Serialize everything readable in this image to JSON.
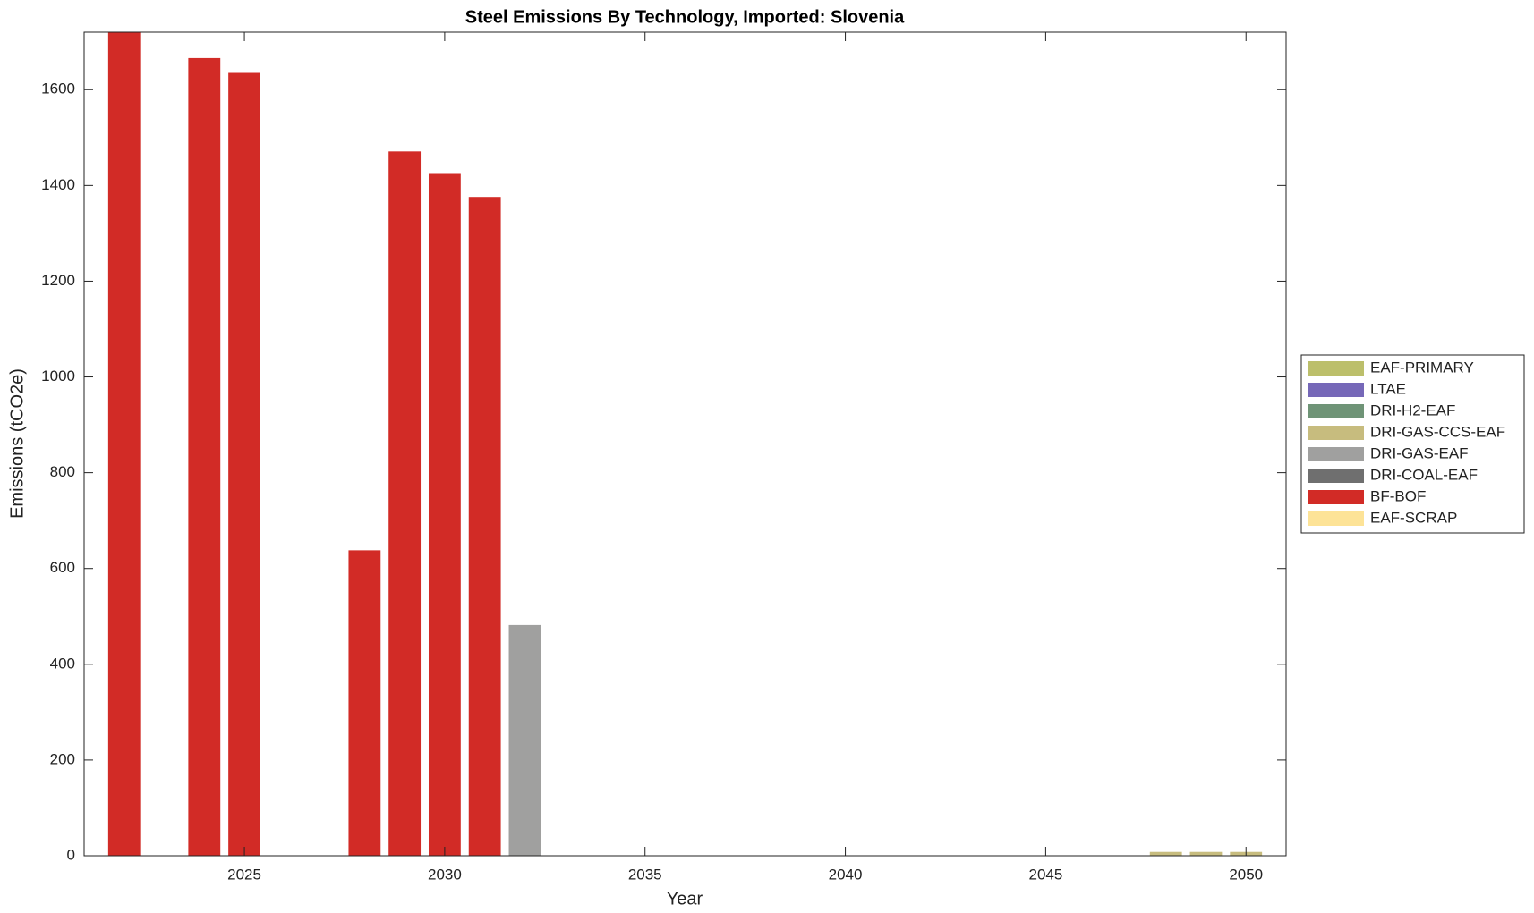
{
  "chart_data": {
    "type": "stacked_bar",
    "title": "Steel Emissions By Technology, Imported: Slovenia",
    "x_label": "Year",
    "y_label": "Emissions (tCO2e)",
    "x": [
      2022,
      2023,
      2024,
      2025,
      2026,
      2027,
      2028,
      2029,
      2030,
      2031,
      2032,
      2033,
      2034,
      2035,
      2036,
      2037,
      2038,
      2039,
      2040,
      2041,
      2042,
      2043,
      2044,
      2045,
      2046,
      2047,
      2048,
      2049,
      2050
    ],
    "series": [
      {
        "name": "EAF-PRIMARY",
        "color": "#bcbf6b",
        "values": [
          0,
          0,
          0,
          0,
          0,
          0,
          0,
          0,
          0,
          0,
          0,
          0,
          0,
          0,
          0,
          0,
          0,
          0,
          0,
          0,
          0,
          0,
          0,
          0,
          0,
          0,
          0,
          0,
          0
        ]
      },
      {
        "name": "LTAE",
        "color": "#7668b8",
        "values": [
          0,
          0,
          0,
          0,
          0,
          0,
          0,
          0,
          0,
          0,
          0,
          0,
          0,
          0,
          0,
          0,
          0,
          0,
          0,
          0,
          0,
          0,
          0,
          0,
          0,
          0,
          0,
          0,
          0
        ]
      },
      {
        "name": "DRI-H2-EAF",
        "color": "#6f9477",
        "values": [
          0,
          0,
          0,
          0,
          0,
          0,
          0,
          0,
          0,
          0,
          0,
          0,
          0,
          0,
          0,
          0,
          0,
          0,
          0,
          0,
          0,
          0,
          0,
          0,
          0,
          0,
          0,
          0,
          0
        ]
      },
      {
        "name": "DRI-GAS-CCS-EAF",
        "color": "#c7bc7e",
        "values": [
          0,
          0,
          0,
          0,
          0,
          0,
          0,
          0,
          0,
          0,
          0,
          0,
          0,
          0,
          0,
          0,
          0,
          0,
          0,
          0,
          0,
          0,
          0,
          0,
          0,
          0,
          8,
          8,
          8
        ]
      },
      {
        "name": "DRI-GAS-EAF",
        "color": "#a0a09f",
        "values": [
          0,
          0,
          0,
          0,
          0,
          0,
          0,
          0,
          0,
          0,
          482,
          0,
          0,
          0,
          0,
          0,
          0,
          0,
          0,
          0,
          0,
          0,
          0,
          0,
          0,
          0,
          0,
          0,
          0
        ]
      },
      {
        "name": "DRI-COAL-EAF",
        "color": "#6f6f6f",
        "values": [
          0,
          0,
          0,
          0,
          0,
          0,
          0,
          0,
          0,
          0,
          0,
          0,
          0,
          0,
          0,
          0,
          0,
          0,
          0,
          0,
          0,
          0,
          0,
          0,
          0,
          0,
          0,
          0,
          0
        ]
      },
      {
        "name": "BF-BOF",
        "color": "#d22b26",
        "values": [
          1720,
          0,
          1666,
          1635,
          0,
          0,
          638,
          1471,
          1424,
          1376,
          0,
          0,
          0,
          0,
          0,
          0,
          0,
          0,
          0,
          0,
          0,
          0,
          0,
          0,
          0,
          0,
          0,
          0,
          0
        ]
      },
      {
        "name": "EAF-SCRAP",
        "color": "#fde397",
        "values": [
          0,
          0,
          0,
          0,
          0,
          0,
          0,
          0,
          0,
          0,
          0,
          0,
          0,
          0,
          0,
          0,
          0,
          0,
          0,
          0,
          0,
          0,
          0,
          0,
          0,
          0,
          0,
          0,
          0
        ]
      }
    ],
    "xlim": [
      2021,
      2051
    ],
    "xticks": [
      2025,
      2030,
      2035,
      2040,
      2045,
      2050
    ],
    "ylim": [
      0,
      1720
    ],
    "yticks": [
      0,
      200,
      400,
      600,
      800,
      1000,
      1200,
      1400,
      1600
    ],
    "grid": false,
    "legend": "right"
  }
}
